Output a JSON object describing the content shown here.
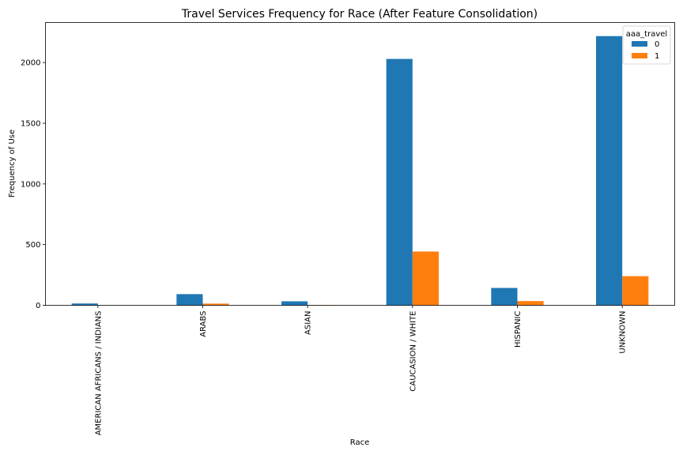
{
  "chart_data": {
    "type": "bar",
    "title": "Travel Services Frequency for Race (After Feature Consolidation)",
    "xlabel": "Race",
    "ylabel": "Frequency of Use",
    "categories": [
      "AMERICAN AFRICANS / INDIANS",
      "ARABS",
      "ASIAN",
      "CAUCASION / WHITE",
      "HISPANIC",
      "UNKNOWN"
    ],
    "series": [
      {
        "name": "0",
        "color": "#1f77b4",
        "values": [
          15,
          92,
          33,
          2030,
          143,
          2218
        ]
      },
      {
        "name": "1",
        "color": "#ff7f0e",
        "values": [
          0,
          14,
          3,
          443,
          35,
          240
        ]
      }
    ],
    "ylim": [
      0,
      2330
    ],
    "yticks": [
      0,
      500,
      1000,
      1500,
      2000
    ],
    "legend": {
      "title": "aaa_travel",
      "placement": "top-right"
    },
    "grid": false
  }
}
